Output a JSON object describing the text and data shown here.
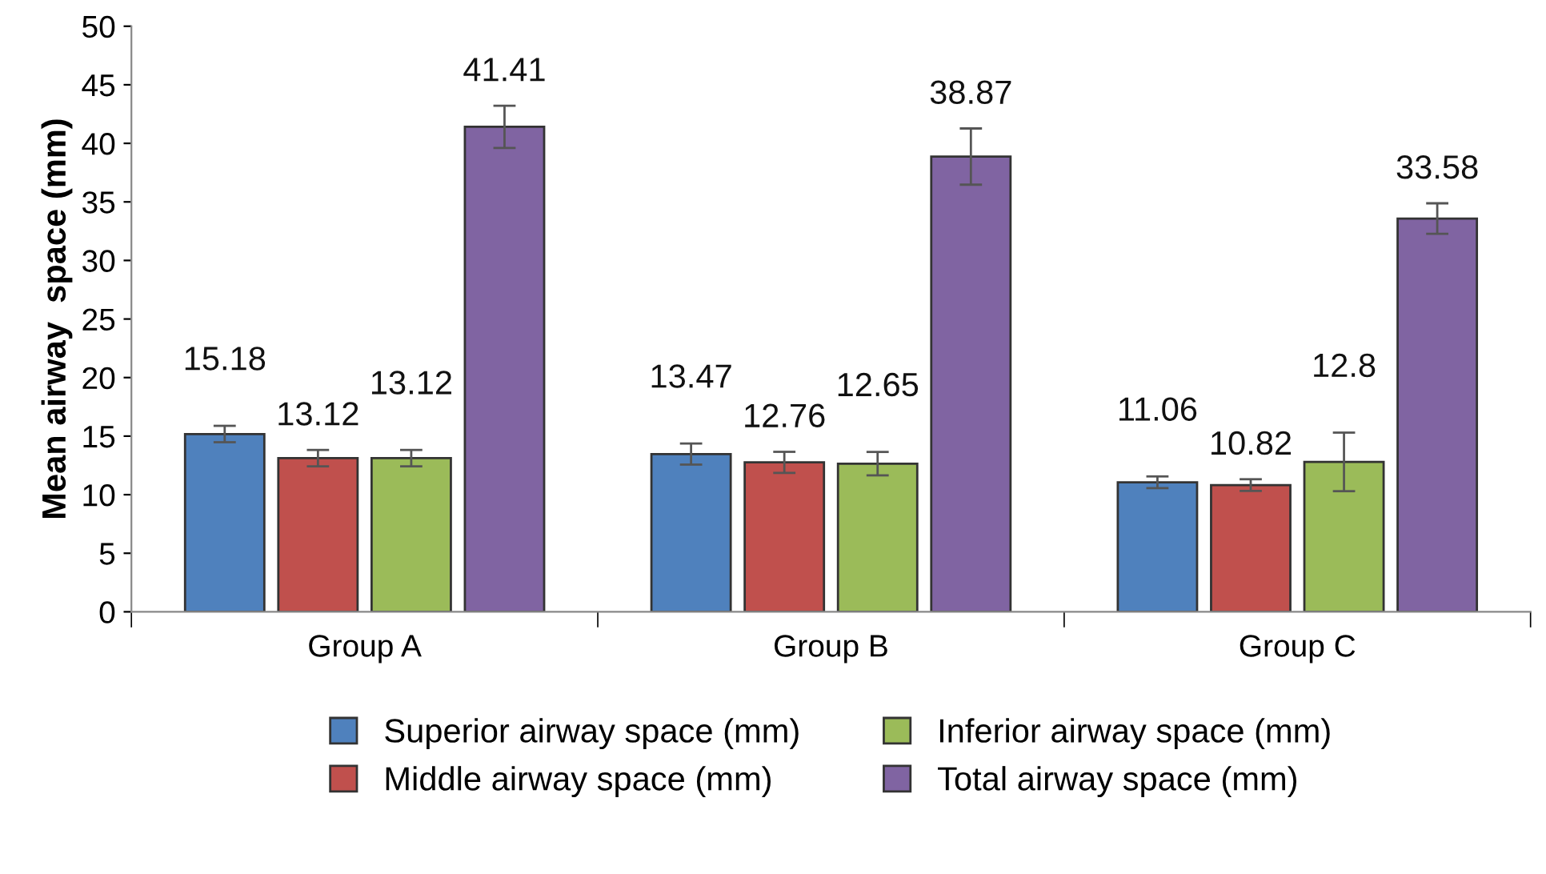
{
  "chart_data": {
    "type": "bar",
    "ylabel": "Mean airway  space (mm)",
    "categories": [
      "Group A",
      "Group B",
      "Group C"
    ],
    "series": [
      {
        "name": "Superior airway space (mm)",
        "color": "#4f81bd",
        "values": [
          15.18,
          13.47,
          11.06
        ],
        "errors": [
          0.7,
          0.9,
          0.5
        ]
      },
      {
        "name": "Middle airway space (mm)",
        "color": "#c0504d",
        "values": [
          13.12,
          12.76,
          10.82
        ],
        "errors": [
          0.7,
          0.9,
          0.5
        ]
      },
      {
        "name": "Inferior airway space (mm)",
        "color": "#9bbb59",
        "values": [
          13.12,
          12.65,
          12.8
        ],
        "errors": [
          0.7,
          1.0,
          2.5
        ]
      },
      {
        "name": "Total airway space (mm)",
        "color": "#8064a2",
        "values": [
          41.41,
          38.87,
          33.58
        ],
        "errors": [
          1.8,
          2.4,
          1.3
        ]
      }
    ],
    "ylim": [
      0,
      50
    ],
    "yticks": [
      0,
      5,
      10,
      15,
      20,
      25,
      30,
      35,
      40,
      45,
      50
    ],
    "data_labels": true,
    "legend": "bottom",
    "grid": false
  }
}
